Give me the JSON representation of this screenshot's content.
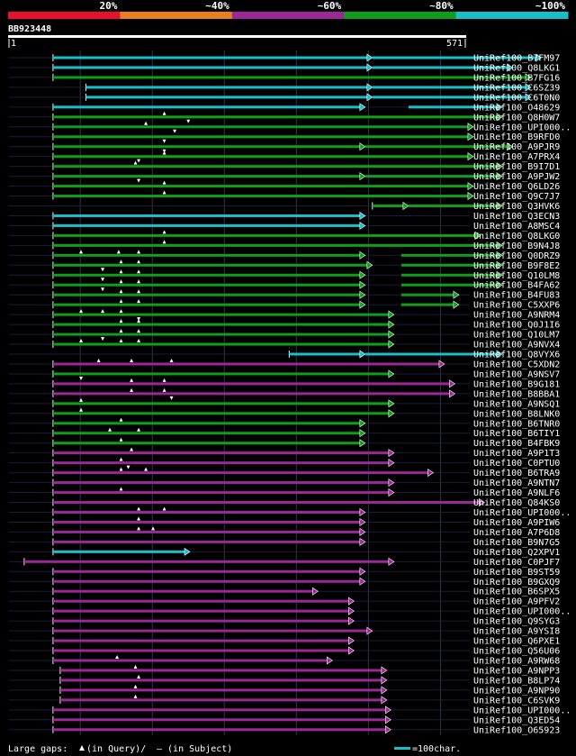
{
  "chart_data": {
    "type": "alignment-overview",
    "query_id": "BB923448",
    "query_start": "1",
    "query_end": "571",
    "query_length": 571,
    "identity_scale": [
      {
        "label": "20%",
        "color": "#e8112d"
      },
      {
        "label": "~40%",
        "color": "#e8801d"
      },
      {
        "label": "~60%",
        "color": "#9c2797"
      },
      {
        "label": "~80%",
        "color": "#0d9e1b"
      },
      {
        "label": "~100%",
        "color": "#17bfca"
      }
    ],
    "colors": {
      "cyan": "#17bfca",
      "green": "#0d9e1b",
      "purple": "#9c2797"
    },
    "gridlines_at": [
      90,
      180,
      270,
      360,
      450,
      540
    ],
    "hits": [
      {
        "name": "UniRef100_B7FM97",
        "color": "cyan",
        "segments": [
          [
            56,
            455
          ],
          [
            455,
            666
          ]
        ],
        "markers": []
      },
      {
        "name": "UniRef100_Q8LKG1",
        "color": "cyan",
        "segments": [
          [
            56,
            455
          ],
          [
            455,
            630
          ]
        ],
        "markers": []
      },
      {
        "name": "UniRef100_B7FG16",
        "color": "green",
        "segments": [
          [
            56,
            653
          ]
        ],
        "markers": []
      },
      {
        "name": "UniRef100_C6SZ39",
        "color": "cyan",
        "segments": [
          [
            97,
            455
          ],
          [
            455,
            653
          ]
        ],
        "markers": []
      },
      {
        "name": "UniRef100_C6T0N0",
        "color": "cyan",
        "segments": [
          [
            97,
            455
          ],
          [
            455,
            653
          ]
        ],
        "markers": []
      },
      {
        "name": "UniRef100_O48629",
        "color": "cyan",
        "segments": [
          [
            56,
            446
          ],
          [
            500,
            617
          ]
        ],
        "markers": []
      },
      {
        "name": "UniRef100_Q8H0W7",
        "color": "green",
        "segments": [
          [
            56,
            617
          ]
        ],
        "markers": [
          [
            195,
            "up"
          ],
          [
            225,
            "down"
          ]
        ]
      },
      {
        "name": "UniRef100_UPI000..",
        "color": "green",
        "segments": [
          [
            56,
            581
          ]
        ],
        "markers": [
          [
            172,
            "up"
          ],
          [
            208,
            "down"
          ]
        ]
      },
      {
        "name": "UniRef100_B9RFD0",
        "color": "green",
        "segments": [
          [
            56,
            581
          ]
        ],
        "markers": [
          [
            195,
            "down"
          ]
        ]
      },
      {
        "name": "UniRef100_A9PJR9",
        "color": "green",
        "segments": [
          [
            56,
            446
          ],
          [
            446,
            630
          ]
        ],
        "markers": [
          [
            195,
            "down"
          ]
        ]
      },
      {
        "name": "UniRef100_A7PRX4",
        "color": "green",
        "segments": [
          [
            56,
            581
          ]
        ],
        "markers": [
          [
            195,
            "up"
          ],
          [
            163,
            "down"
          ]
        ]
      },
      {
        "name": "UniRef100_B9I7D1",
        "color": "green",
        "segments": [
          [
            56,
            617
          ]
        ],
        "markers": [
          [
            159,
            "up"
          ]
        ]
      },
      {
        "name": "UniRef100_A9PJW2",
        "color": "green",
        "segments": [
          [
            56,
            446
          ],
          [
            446,
            617
          ]
        ],
        "markers": [
          [
            163,
            "down"
          ]
        ]
      },
      {
        "name": "UniRef100_Q6LD26",
        "color": "green",
        "segments": [
          [
            56,
            581
          ]
        ],
        "markers": [
          [
            195,
            "up"
          ]
        ]
      },
      {
        "name": "UniRef100_Q9C7J7",
        "color": "green",
        "segments": [
          [
            56,
            581
          ]
        ],
        "markers": [
          [
            195,
            "up"
          ]
        ]
      },
      {
        "name": "UniRef100_Q3HVK6",
        "color": "green",
        "segments": [
          [
            455,
            500
          ],
          [
            500,
            617
          ]
        ],
        "markers": []
      },
      {
        "name": "UniRef100_Q3ECN3",
        "color": "cyan",
        "segments": [
          [
            56,
            446
          ]
        ],
        "markers": []
      },
      {
        "name": "UniRef100_A8MSC4",
        "color": "cyan",
        "segments": [
          [
            56,
            446
          ]
        ],
        "markers": []
      },
      {
        "name": "UniRef100_Q8LKG0",
        "color": "green",
        "segments": [
          [
            56,
            590
          ]
        ],
        "markers": [
          [
            195,
            "up"
          ]
        ]
      },
      {
        "name": "UniRef100_B9N4J8",
        "color": "green",
        "segments": [
          [
            56,
            617
          ]
        ],
        "markers": [
          [
            195,
            "up"
          ]
        ]
      },
      {
        "name": "UniRef100_Q0DRZ9",
        "color": "green",
        "segments": [
          [
            56,
            446
          ],
          [
            491,
            617
          ]
        ],
        "markers": [
          [
            91,
            "up"
          ],
          [
            138,
            "up"
          ],
          [
            163,
            "up"
          ]
        ]
      },
      {
        "name": "UniRef100_B9F8E2",
        "color": "green",
        "segments": [
          [
            56,
            455
          ],
          [
            491,
            617
          ]
        ],
        "markers": [
          [
            141,
            "up"
          ],
          [
            163,
            "up"
          ],
          [
            118,
            "down"
          ]
        ]
      },
      {
        "name": "UniRef100_Q10LM8",
        "color": "green",
        "segments": [
          [
            56,
            446
          ],
          [
            491,
            617
          ]
        ],
        "markers": [
          [
            141,
            "up"
          ],
          [
            163,
            "up"
          ],
          [
            118,
            "down"
          ]
        ]
      },
      {
        "name": "UniRef100_B4FA62",
        "color": "green",
        "segments": [
          [
            56,
            446
          ],
          [
            491,
            617
          ]
        ],
        "markers": [
          [
            141,
            "up"
          ],
          [
            163,
            "up"
          ],
          [
            118,
            "down"
          ]
        ]
      },
      {
        "name": "UniRef100_B4FU83",
        "color": "green",
        "segments": [
          [
            56,
            446
          ],
          [
            491,
            563
          ]
        ],
        "markers": [
          [
            141,
            "up"
          ],
          [
            163,
            "up"
          ]
        ]
      },
      {
        "name": "UniRef100_C5XXP6",
        "color": "green",
        "segments": [
          [
            56,
            446
          ],
          [
            491,
            563
          ]
        ],
        "markers": [
          [
            141,
            "up"
          ],
          [
            163,
            "up"
          ]
        ]
      },
      {
        "name": "UniRef100_A9NRM4",
        "color": "green",
        "segments": [
          [
            56,
            482
          ]
        ],
        "markers": [
          [
            91,
            "up"
          ],
          [
            118,
            "up"
          ],
          [
            141,
            "up"
          ],
          [
            163,
            "down"
          ]
        ]
      },
      {
        "name": "UniRef100_Q0J1I6",
        "color": "green",
        "segments": [
          [
            56,
            482
          ]
        ],
        "markers": [
          [
            141,
            "up"
          ],
          [
            163,
            "up"
          ]
        ]
      },
      {
        "name": "UniRef100_Q10LM7",
        "color": "green",
        "segments": [
          [
            56,
            482
          ]
        ],
        "markers": [
          [
            141,
            "up"
          ],
          [
            163,
            "up"
          ],
          [
            118,
            "down"
          ]
        ]
      },
      {
        "name": "UniRef100_A9NVX4",
        "color": "green",
        "segments": [
          [
            56,
            482
          ]
        ],
        "markers": [
          [
            91,
            "up"
          ],
          [
            141,
            "up"
          ],
          [
            163,
            "up"
          ]
        ]
      },
      {
        "name": "UniRef100_Q8VYX6",
        "color": "cyan",
        "segments": [
          [
            351,
            446
          ],
          [
            446,
            617
          ]
        ],
        "markers": []
      },
      {
        "name": "UniRef100_C5XDN2",
        "color": "purple",
        "segments": [
          [
            56,
            545
          ]
        ],
        "markers": [
          [
            113,
            "up"
          ],
          [
            154,
            "up"
          ],
          [
            204,
            "up"
          ]
        ]
      },
      {
        "name": "UniRef100_A9NSV7",
        "color": "green",
        "segments": [
          [
            56,
            482
          ]
        ],
        "markers": [
          [
            91,
            "down"
          ]
        ]
      },
      {
        "name": "UniRef100_B9G181",
        "color": "purple",
        "segments": [
          [
            56,
            558
          ]
        ],
        "markers": [
          [
            154,
            "up"
          ],
          [
            195,
            "up"
          ]
        ]
      },
      {
        "name": "UniRef100_B8BBA1",
        "color": "purple",
        "segments": [
          [
            56,
            558
          ]
        ],
        "markers": [
          [
            154,
            "up"
          ],
          [
            195,
            "up"
          ],
          [
            204,
            "down"
          ]
        ]
      },
      {
        "name": "UniRef100_A9NSQ1",
        "color": "green",
        "segments": [
          [
            56,
            482
          ]
        ],
        "markers": [
          [
            91,
            "up"
          ]
        ]
      },
      {
        "name": "UniRef100_B8LNK0",
        "color": "green",
        "segments": [
          [
            56,
            482
          ]
        ],
        "markers": [
          [
            91,
            "up"
          ]
        ]
      },
      {
        "name": "UniRef100_B6TNR0",
        "color": "green",
        "segments": [
          [
            56,
            446
          ]
        ],
        "markers": [
          [
            141,
            "up"
          ]
        ]
      },
      {
        "name": "UniRef100_B6TIY1",
        "color": "green",
        "segments": [
          [
            56,
            446
          ]
        ],
        "markers": [
          [
            127,
            "up"
          ],
          [
            163,
            "up"
          ]
        ]
      },
      {
        "name": "UniRef100_B4FBK9",
        "color": "green",
        "segments": [
          [
            56,
            446
          ]
        ],
        "markers": [
          [
            141,
            "up"
          ]
        ]
      },
      {
        "name": "UniRef100_A9P1T3",
        "color": "purple",
        "segments": [
          [
            56,
            482
          ]
        ],
        "markers": [
          [
            154,
            "up"
          ]
        ]
      },
      {
        "name": "UniRef100_C0PTU0",
        "color": "purple",
        "segments": [
          [
            56,
            482
          ]
        ],
        "markers": [
          [
            141,
            "up"
          ],
          [
            150,
            "down"
          ]
        ]
      },
      {
        "name": "UniRef100_B6TRA9",
        "color": "purple",
        "segments": [
          [
            56,
            531
          ]
        ],
        "markers": [
          [
            141,
            "up"
          ],
          [
            172,
            "up"
          ]
        ]
      },
      {
        "name": "UniRef100_A9NTN7",
        "color": "purple",
        "segments": [
          [
            56,
            482
          ]
        ],
        "markers": []
      },
      {
        "name": "UniRef100_A9NLF6",
        "color": "purple",
        "segments": [
          [
            56,
            482
          ]
        ],
        "markers": [
          [
            141,
            "up"
          ]
        ]
      },
      {
        "name": "UniRef100_Q84KS0",
        "color": "purple",
        "segments": [
          [
            56,
            595
          ]
        ],
        "markers": []
      },
      {
        "name": "UniRef100_UPI000..",
        "color": "purple",
        "segments": [
          [
            56,
            446
          ]
        ],
        "markers": [
          [
            163,
            "up"
          ],
          [
            195,
            "up"
          ]
        ]
      },
      {
        "name": "UniRef100_A9PIW6",
        "color": "purple",
        "segments": [
          [
            56,
            446
          ]
        ],
        "markers": [
          [
            163,
            "up"
          ]
        ]
      },
      {
        "name": "UniRef100_A7P6D8",
        "color": "purple",
        "segments": [
          [
            56,
            446
          ]
        ],
        "markers": [
          [
            163,
            "up"
          ],
          [
            181,
            "up"
          ]
        ]
      },
      {
        "name": "UniRef100_B9N7G5",
        "color": "purple",
        "segments": [
          [
            56,
            446
          ]
        ],
        "markers": []
      },
      {
        "name": "UniRef100_Q2XPV1",
        "color": "cyan",
        "segments": [
          [
            56,
            227
          ]
        ],
        "markers": []
      },
      {
        "name": "UniRef100_C0PJF7",
        "color": "purple",
        "segments": [
          [
            20,
            482
          ]
        ],
        "markers": []
      },
      {
        "name": "UniRef100_B9ST59",
        "color": "purple",
        "segments": [
          [
            56,
            446
          ]
        ],
        "markers": []
      },
      {
        "name": "UniRef100_B9GXQ9",
        "color": "purple",
        "segments": [
          [
            56,
            446
          ]
        ],
        "markers": []
      },
      {
        "name": "UniRef100_B6SPX5",
        "color": "purple",
        "segments": [
          [
            56,
            387
          ]
        ],
        "markers": []
      },
      {
        "name": "UniRef100_A9PFV2",
        "color": "purple",
        "segments": [
          [
            56,
            432
          ]
        ],
        "markers": []
      },
      {
        "name": "UniRef100_UPI000..",
        "color": "purple",
        "segments": [
          [
            56,
            432
          ]
        ],
        "markers": []
      },
      {
        "name": "UniRef100_Q9SYG3",
        "color": "purple",
        "segments": [
          [
            56,
            432
          ]
        ],
        "markers": []
      },
      {
        "name": "UniRef100_A9YSI8",
        "color": "purple",
        "segments": [
          [
            56,
            455
          ]
        ],
        "markers": []
      },
      {
        "name": "UniRef100_Q6PXE1",
        "color": "purple",
        "segments": [
          [
            56,
            432
          ]
        ],
        "markers": []
      },
      {
        "name": "UniRef100_Q56U06",
        "color": "purple",
        "segments": [
          [
            56,
            432
          ]
        ],
        "markers": []
      },
      {
        "name": "UniRef100_A9RW68",
        "color": "purple",
        "segments": [
          [
            56,
            405
          ]
        ],
        "markers": [
          [
            136,
            "up"
          ]
        ]
      },
      {
        "name": "UniRef100_A9NPP3",
        "color": "purple",
        "segments": [
          [
            65,
            473
          ]
        ],
        "markers": [
          [
            159,
            "up"
          ]
        ]
      },
      {
        "name": "UniRef100_B8LP74",
        "color": "purple",
        "segments": [
          [
            65,
            473
          ]
        ],
        "markers": [
          [
            163,
            "up"
          ]
        ]
      },
      {
        "name": "UniRef100_A9NP90",
        "color": "purple",
        "segments": [
          [
            65,
            473
          ]
        ],
        "markers": [
          [
            159,
            "up"
          ]
        ]
      },
      {
        "name": "UniRef100_C6SVK9",
        "color": "purple",
        "segments": [
          [
            65,
            473
          ]
        ],
        "markers": [
          [
            159,
            "up"
          ]
        ]
      },
      {
        "name": "UniRef100_UPI000..",
        "color": "purple",
        "segments": [
          [
            56,
            478
          ]
        ],
        "markers": []
      },
      {
        "name": "UniRef100_Q3ED54",
        "color": "purple",
        "segments": [
          [
            56,
            478
          ]
        ],
        "markers": []
      },
      {
        "name": "UniRef100_O65923",
        "color": "purple",
        "segments": [
          [
            56,
            478
          ]
        ],
        "markers": []
      }
    ],
    "legend": {
      "gaps_prefix": "Large gaps: ",
      "gaps_query": "(in Query)/",
      "gaps_subject": "– (in Subject)",
      "scale_text": "=100char."
    }
  }
}
